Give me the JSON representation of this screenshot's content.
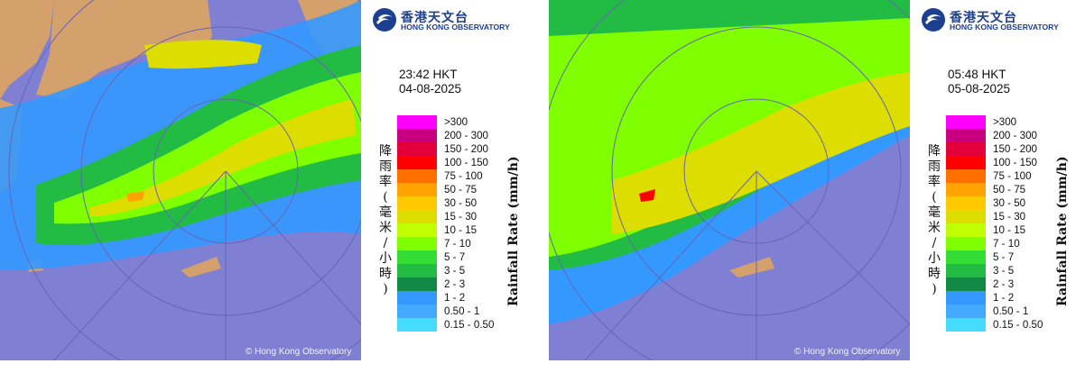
{
  "colors": {
    "sea": "#7f7fd4",
    "land": "#d4a06b",
    "logo": "#1d3f8f"
  },
  "logo": {
    "name_zh": "香港天文台",
    "name_en": "HONG KONG OBSERVATORY"
  },
  "copyright": "© Hong Kong Observatory",
  "legend": {
    "label_zh": "降雨率(毫米/小時)",
    "label_en": "Rainfall Rate (mm/h)",
    "items": [
      {
        "range": ">300",
        "color": "#ff00ff"
      },
      {
        "range": "200 - 300",
        "color": "#c8007f"
      },
      {
        "range": "150 - 200",
        "color": "#e3003a"
      },
      {
        "range": "100 - 150",
        "color": "#ff0000"
      },
      {
        "range": "75 - 100",
        "color": "#ff6f00"
      },
      {
        "range": "50 - 75",
        "color": "#ffa300"
      },
      {
        "range": "30 - 50",
        "color": "#ffc800"
      },
      {
        "range": "15 - 30",
        "color": "#dddd00"
      },
      {
        "range": "10 - 15",
        "color": "#c0ff00"
      },
      {
        "range": "7 - 10",
        "color": "#80ff00"
      },
      {
        "range": "5 - 7",
        "color": "#33dd33"
      },
      {
        "range": "3 - 5",
        "color": "#22bb44"
      },
      {
        "range": "2 - 3",
        "color": "#118844"
      },
      {
        "range": "1 - 2",
        "color": "#3399ff"
      },
      {
        "range": "0.50 - 1",
        "color": "#44aaff"
      },
      {
        "range": "0.15 - 0.50",
        "color": "#44ddff"
      }
    ]
  },
  "panels": [
    {
      "time": "23:42 HKT",
      "date": "04-08-2025"
    },
    {
      "time": "05:48 HKT",
      "date": "05-08-2025"
    }
  ]
}
